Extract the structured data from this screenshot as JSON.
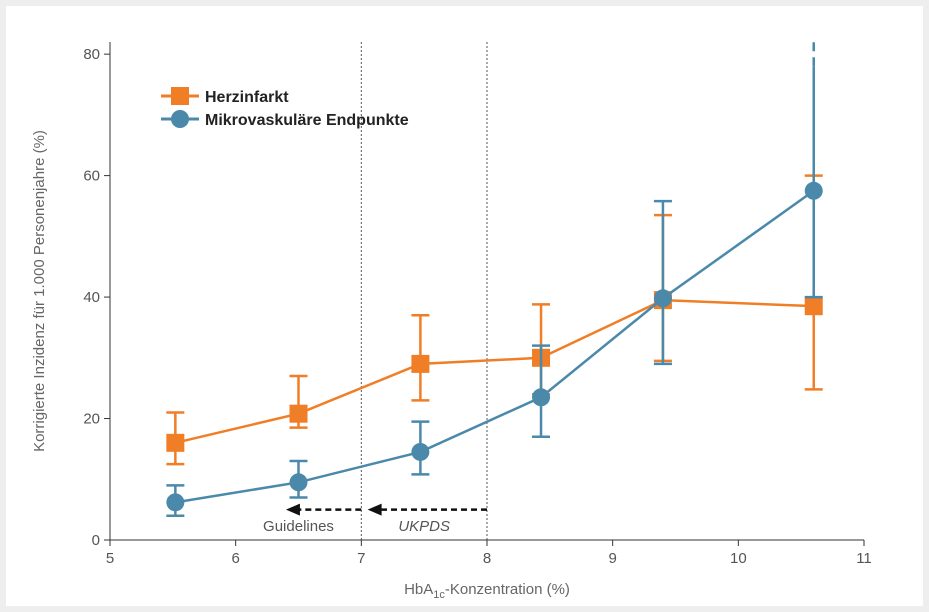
{
  "colors": {
    "herzinfarkt": "#f07e26",
    "mikro": "#4a89aa",
    "axis": "#333333",
    "frame": "#eeeeee"
  },
  "chart_data": {
    "type": "line",
    "xlabel_prefix": "HbA",
    "xlabel_sub": "1c",
    "xlabel_suffix": "-Konzentration (%)",
    "ylabel": "Korrigierte Inzidenz für 1.000 Personenjahre (%)",
    "xlim": [
      5,
      11
    ],
    "ylim": [
      0,
      82
    ],
    "xticks": [
      "5",
      "6",
      "7",
      "8",
      "9",
      "10",
      "11"
    ],
    "yticks": [
      "0",
      "20",
      "40",
      "60",
      "80"
    ],
    "series": [
      {
        "name": "Herzinfarkt",
        "marker": "square",
        "color": "#f07e26",
        "points": [
          {
            "x": 5.52,
            "y": 16,
            "low": 12.5,
            "high": 21
          },
          {
            "x": 6.5,
            "y": 20.8,
            "low": 18.5,
            "high": 27
          },
          {
            "x": 7.47,
            "y": 29,
            "low": 23,
            "high": 37
          },
          {
            "x": 8.43,
            "y": 30,
            "low": 24,
            "high": 38.8
          },
          {
            "x": 9.4,
            "y": 39.5,
            "low": 29.5,
            "high": 53.5
          },
          {
            "x": 10.6,
            "y": 38.5,
            "low": 24.8,
            "high": 60
          }
        ]
      },
      {
        "name": "Mikrovaskuläre Endpunkte",
        "marker": "circle",
        "color": "#4a89aa",
        "points": [
          {
            "x": 5.52,
            "y": 6.2,
            "low": 4,
            "high": 9
          },
          {
            "x": 6.5,
            "y": 9.5,
            "low": 7,
            "high": 13
          },
          {
            "x": 7.47,
            "y": 14.5,
            "low": 10.8,
            "high": 19.5
          },
          {
            "x": 8.43,
            "y": 23.5,
            "low": 17,
            "high": 32
          },
          {
            "x": 9.4,
            "y": 39.8,
            "low": 29,
            "high": 55.8
          },
          {
            "x": 10.6,
            "y": 57.5,
            "low": 40,
            "high": 78
          }
        ]
      }
    ],
    "reference_lines": [
      7,
      8
    ],
    "annotations": [
      {
        "text": "Guidelines",
        "x": 6.5,
        "y": 1.5,
        "italic": false
      },
      {
        "text": "UKPDS",
        "x": 7.5,
        "y": 1.5,
        "italic": true
      }
    ],
    "arrows": [
      {
        "from": 7,
        "to": 6.4,
        "y": 5
      },
      {
        "from": 8,
        "to": 7.05,
        "y": 5
      }
    ],
    "legend_position": "top-left"
  }
}
